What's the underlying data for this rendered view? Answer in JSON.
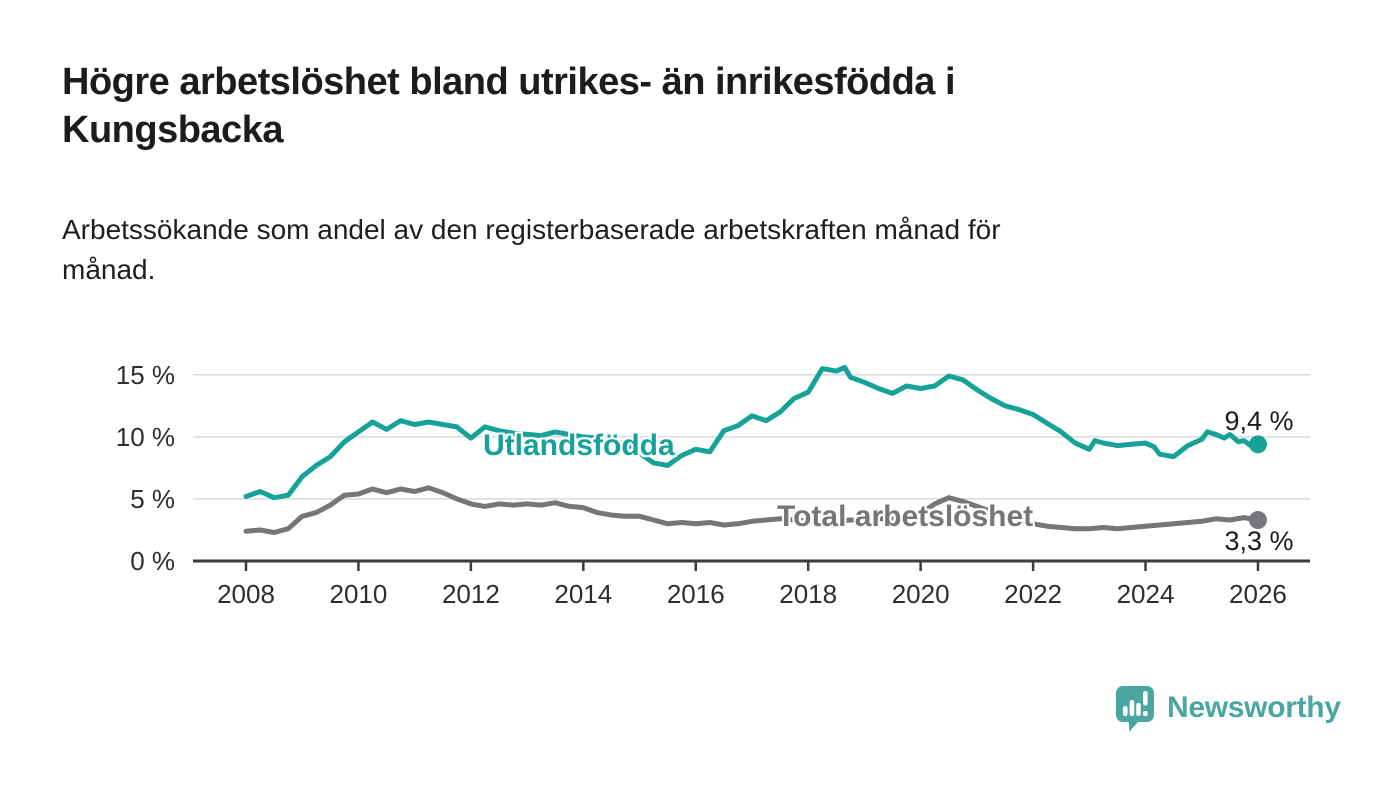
{
  "header": {
    "title_lines": [
      "Högre arbetslöshet bland utrikes- än inrikesfödda i",
      "Kungsbacka"
    ],
    "subtitle_lines": [
      "Arbetssökande som andel av den registerbaserade arbetskraften månad för",
      "månad."
    ]
  },
  "chart_data": {
    "type": "line",
    "title": "Högre arbetslöshet bland utrikes- än inrikesfödda i Kungsbacka",
    "subtitle": "Arbetssökande som andel av den registerbaserade arbetskraften månad för månad.",
    "unit": "%",
    "grid": "horizontal",
    "legend_position": "inline-labels",
    "x_axis": {
      "ticks": [
        2008,
        2010,
        2012,
        2014,
        2016,
        2018,
        2020,
        2022,
        2024,
        2026
      ],
      "range": [
        2007.1,
        2026.9
      ]
    },
    "y_axis": {
      "ticks": [
        "0 %",
        "5 %",
        "10 %",
        "15 %"
      ],
      "tick_values": [
        0,
        5,
        10,
        15
      ],
      "range": [
        0,
        16.2
      ]
    },
    "series": [
      {
        "name": "Utlandsfödda",
        "color": "#16a298",
        "end_label": "9,4 %",
        "end_value": 9.4,
        "points": [
          [
            2008.0,
            5.2
          ],
          [
            2008.25,
            5.6
          ],
          [
            2008.5,
            5.1
          ],
          [
            2008.75,
            5.3
          ],
          [
            2009.0,
            6.8
          ],
          [
            2009.25,
            7.7
          ],
          [
            2009.5,
            8.4
          ],
          [
            2009.75,
            9.6
          ],
          [
            2010.0,
            10.4
          ],
          [
            2010.25,
            11.2
          ],
          [
            2010.5,
            10.6
          ],
          [
            2010.75,
            11.3
          ],
          [
            2011.0,
            11.0
          ],
          [
            2011.25,
            11.2
          ],
          [
            2011.5,
            11.0
          ],
          [
            2011.75,
            10.8
          ],
          [
            2012.0,
            9.9
          ],
          [
            2012.25,
            10.8
          ],
          [
            2012.5,
            10.5
          ],
          [
            2012.75,
            10.3
          ],
          [
            2013.0,
            10.2
          ],
          [
            2013.25,
            10.1
          ],
          [
            2013.5,
            10.4
          ],
          [
            2013.75,
            10.2
          ],
          [
            2014.0,
            10.0
          ],
          [
            2014.25,
            9.9
          ],
          [
            2014.5,
            9.7
          ],
          [
            2014.75,
            9.4
          ],
          [
            2015.0,
            8.7
          ],
          [
            2015.25,
            7.9
          ],
          [
            2015.5,
            7.7
          ],
          [
            2015.75,
            8.5
          ],
          [
            2016.0,
            9.0
          ],
          [
            2016.25,
            8.8
          ],
          [
            2016.5,
            10.5
          ],
          [
            2016.75,
            10.9
          ],
          [
            2017.0,
            11.7
          ],
          [
            2017.25,
            11.3
          ],
          [
            2017.5,
            12.0
          ],
          [
            2017.75,
            13.1
          ],
          [
            2018.0,
            13.6
          ],
          [
            2018.25,
            15.5
          ],
          [
            2018.5,
            15.3
          ],
          [
            2018.65,
            15.6
          ],
          [
            2018.75,
            14.8
          ],
          [
            2019.0,
            14.4
          ],
          [
            2019.25,
            13.9
          ],
          [
            2019.5,
            13.5
          ],
          [
            2019.75,
            14.1
          ],
          [
            2020.0,
            13.9
          ],
          [
            2020.25,
            14.1
          ],
          [
            2020.5,
            14.9
          ],
          [
            2020.75,
            14.6
          ],
          [
            2021.0,
            13.8
          ],
          [
            2021.25,
            13.1
          ],
          [
            2021.5,
            12.5
          ],
          [
            2021.75,
            12.2
          ],
          [
            2022.0,
            11.8
          ],
          [
            2022.25,
            11.1
          ],
          [
            2022.5,
            10.4
          ],
          [
            2022.75,
            9.5
          ],
          [
            2023.0,
            9.0
          ],
          [
            2023.1,
            9.7
          ],
          [
            2023.25,
            9.5
          ],
          [
            2023.5,
            9.3
          ],
          [
            2023.75,
            9.4
          ],
          [
            2024.0,
            9.5
          ],
          [
            2024.15,
            9.2
          ],
          [
            2024.25,
            8.6
          ],
          [
            2024.5,
            8.4
          ],
          [
            2024.75,
            9.3
          ],
          [
            2025.0,
            9.8
          ],
          [
            2025.1,
            10.4
          ],
          [
            2025.25,
            10.2
          ],
          [
            2025.4,
            9.9
          ],
          [
            2025.5,
            10.2
          ],
          [
            2025.65,
            9.6
          ],
          [
            2025.75,
            9.7
          ],
          [
            2025.9,
            9.2
          ],
          [
            2026.0,
            9.4
          ]
        ]
      },
      {
        "name": "Total arbetslöshet",
        "color": "#76767a",
        "end_label": "3,3 %",
        "end_value": 3.3,
        "points": [
          [
            2008.0,
            2.4
          ],
          [
            2008.25,
            2.5
          ],
          [
            2008.5,
            2.3
          ],
          [
            2008.75,
            2.6
          ],
          [
            2009.0,
            3.6
          ],
          [
            2009.25,
            3.9
          ],
          [
            2009.5,
            4.5
          ],
          [
            2009.75,
            5.3
          ],
          [
            2010.0,
            5.4
          ],
          [
            2010.25,
            5.8
          ],
          [
            2010.5,
            5.5
          ],
          [
            2010.75,
            5.8
          ],
          [
            2011.0,
            5.6
          ],
          [
            2011.25,
            5.9
          ],
          [
            2011.5,
            5.5
          ],
          [
            2011.75,
            5.0
          ],
          [
            2012.0,
            4.6
          ],
          [
            2012.25,
            4.4
          ],
          [
            2012.5,
            4.6
          ],
          [
            2012.75,
            4.5
          ],
          [
            2013.0,
            4.6
          ],
          [
            2013.25,
            4.5
          ],
          [
            2013.5,
            4.7
          ],
          [
            2013.75,
            4.4
          ],
          [
            2014.0,
            4.3
          ],
          [
            2014.25,
            3.9
          ],
          [
            2014.5,
            3.7
          ],
          [
            2014.75,
            3.6
          ],
          [
            2015.0,
            3.6
          ],
          [
            2015.25,
            3.3
          ],
          [
            2015.5,
            3.0
          ],
          [
            2015.75,
            3.1
          ],
          [
            2016.0,
            3.0
          ],
          [
            2016.25,
            3.1
          ],
          [
            2016.5,
            2.9
          ],
          [
            2016.75,
            3.0
          ],
          [
            2017.0,
            3.2
          ],
          [
            2017.25,
            3.3
          ],
          [
            2017.5,
            3.4
          ],
          [
            2017.75,
            3.3
          ],
          [
            2018.0,
            3.2
          ],
          [
            2018.25,
            3.1
          ],
          [
            2018.5,
            3.2
          ],
          [
            2018.75,
            3.3
          ],
          [
            2019.0,
            3.3
          ],
          [
            2019.25,
            3.4
          ],
          [
            2019.5,
            3.4
          ],
          [
            2019.75,
            3.6
          ],
          [
            2020.0,
            3.8
          ],
          [
            2020.25,
            4.6
          ],
          [
            2020.5,
            5.1
          ],
          [
            2020.75,
            4.8
          ],
          [
            2021.0,
            4.4
          ],
          [
            2021.25,
            4.0
          ],
          [
            2021.5,
            3.6
          ],
          [
            2021.75,
            3.2
          ],
          [
            2022.0,
            3.0
          ],
          [
            2022.25,
            2.8
          ],
          [
            2022.5,
            2.7
          ],
          [
            2022.75,
            2.6
          ],
          [
            2023.0,
            2.6
          ],
          [
            2023.25,
            2.7
          ],
          [
            2023.5,
            2.6
          ],
          [
            2023.75,
            2.7
          ],
          [
            2024.0,
            2.8
          ],
          [
            2024.25,
            2.9
          ],
          [
            2024.5,
            3.0
          ],
          [
            2024.75,
            3.1
          ],
          [
            2025.0,
            3.2
          ],
          [
            2025.25,
            3.4
          ],
          [
            2025.5,
            3.3
          ],
          [
            2025.75,
            3.5
          ],
          [
            2026.0,
            3.3
          ]
        ]
      }
    ],
    "colors": {
      "grid": "#d9d9d9",
      "axis": "#3c3c3c",
      "text": "#1c1c1c"
    }
  },
  "branding": {
    "wordmark": "Newsworthy",
    "color": "#4ba6a1"
  }
}
